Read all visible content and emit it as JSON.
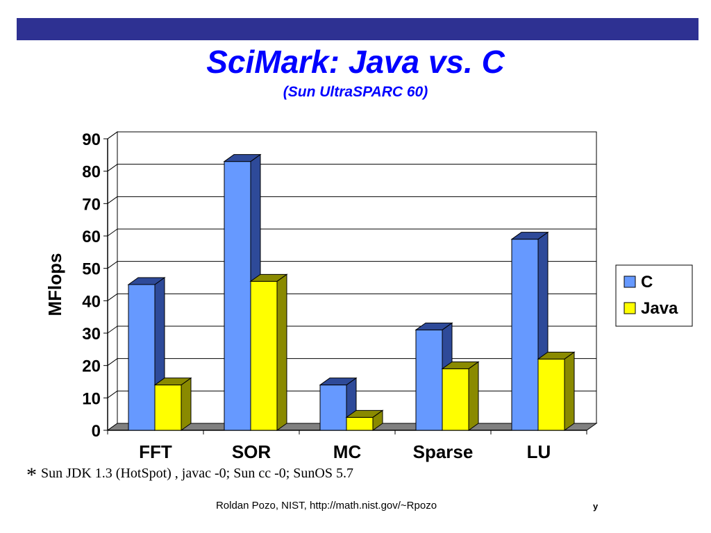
{
  "slide": {
    "title": "SciMark: Java vs. C",
    "subtitle": "(Sun UltraSPARC 60)",
    "footnote_marker": "*",
    "footnote": "Sun JDK 1.3 (HotSpot) , javac -0;   Sun cc -0;  SunOS 5.7",
    "credit": "Roldan Pozo, NIST, http://math.nist.gov/~Rpozo",
    "page_mark": "y",
    "colors": {
      "band": "#2E3192",
      "title": "#0000FF"
    }
  },
  "chart_data": {
    "type": "bar",
    "categories": [
      "FFT",
      "SOR",
      "MC",
      "Sparse",
      "LU"
    ],
    "series": [
      {
        "name": "C",
        "values": [
          45,
          83,
          14,
          31,
          59
        ],
        "color": "#6699FF",
        "side_color": "#2E4A99"
      },
      {
        "name": "Java",
        "values": [
          14,
          46,
          4,
          19,
          22
        ],
        "color": "#FFFF00",
        "side_color": "#8A8A00"
      }
    ],
    "ylabel": "MFlops",
    "ylim": [
      0,
      90
    ],
    "yticks": [
      "0",
      "10",
      "20",
      "30",
      "40",
      "50",
      "60",
      "70",
      "80",
      "90"
    ],
    "grid": true,
    "legend": "right"
  }
}
